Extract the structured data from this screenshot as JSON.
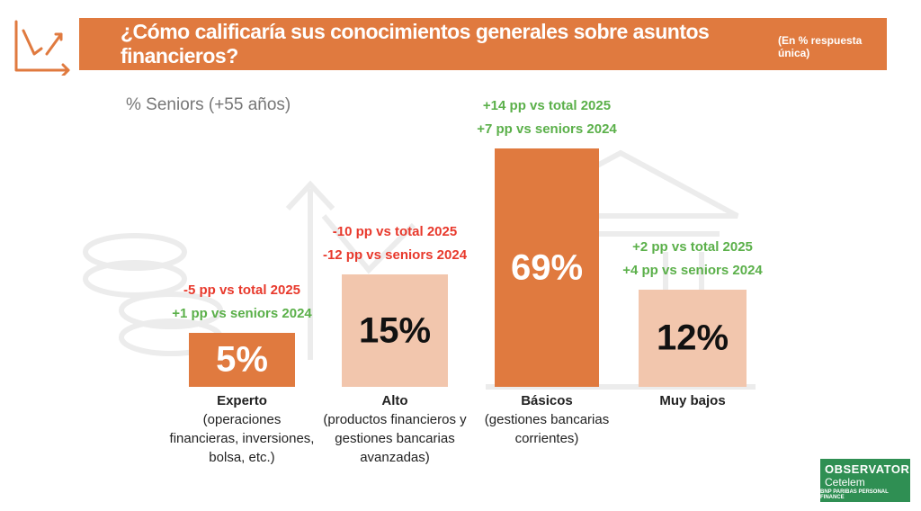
{
  "header": {
    "title": "¿Cómo calificaría sus conocimientos generales sobre asuntos financieros?",
    "note": "(En % respuesta única)"
  },
  "subtitle": "% Seniors (+55 años)",
  "brand": {
    "line1": "OBSERVATORIO",
    "line2": "Cetelem",
    "line3": "BNP PARIBAS PERSONAL FINANCE"
  },
  "colors": {
    "accent": "#e07a3f",
    "light": "#f2c6ad",
    "positive": "#5bb04a",
    "negative": "#e8392c"
  },
  "chart_data": {
    "type": "bar",
    "title": "¿Cómo calificaría sus conocimientos generales sobre asuntos financieros?",
    "categories": [
      {
        "name": "Experto",
        "desc": [
          "(operaciones",
          "financieras, inversiones,",
          "bolsa, etc.)"
        ]
      },
      {
        "name": "Alto",
        "desc": [
          "(productos financieros y",
          "gestiones bancarias",
          "avanzadas)"
        ]
      },
      {
        "name": "Básicos",
        "desc": [
          "(gestiones bancarias",
          "corrientes)"
        ]
      },
      {
        "name": "Muy bajos",
        "desc": []
      }
    ],
    "values": [
      5,
      15,
      69,
      12
    ],
    "value_labels": [
      "5%",
      "15%",
      "69%",
      "12%"
    ],
    "bar_colors": [
      "#e07a3f",
      "#f2c6ad",
      "#e07a3f",
      "#f2c6ad"
    ],
    "value_colors": [
      "#ffffff",
      "#111111",
      "#ffffff",
      "#111111"
    ],
    "annotations": [
      [
        {
          "text": "-5 pp vs total 2025",
          "sign": "neg"
        },
        {
          "text": "+1 pp vs seniors 2024",
          "sign": "pos"
        }
      ],
      [
        {
          "text": "-10 pp vs total 2025",
          "sign": "neg"
        },
        {
          "text": "-12 pp vs seniors 2024",
          "sign": "neg"
        }
      ],
      [
        {
          "text": "+14 pp vs total 2025",
          "sign": "pos"
        },
        {
          "text": "+7 pp vs seniors 2024",
          "sign": "pos"
        }
      ],
      [
        {
          "text": "+2 pp vs total 2025",
          "sign": "pos"
        },
        {
          "text": "+4 pp vs seniors 2024",
          "sign": "pos"
        }
      ]
    ],
    "ylim": [
      0,
      69
    ]
  }
}
